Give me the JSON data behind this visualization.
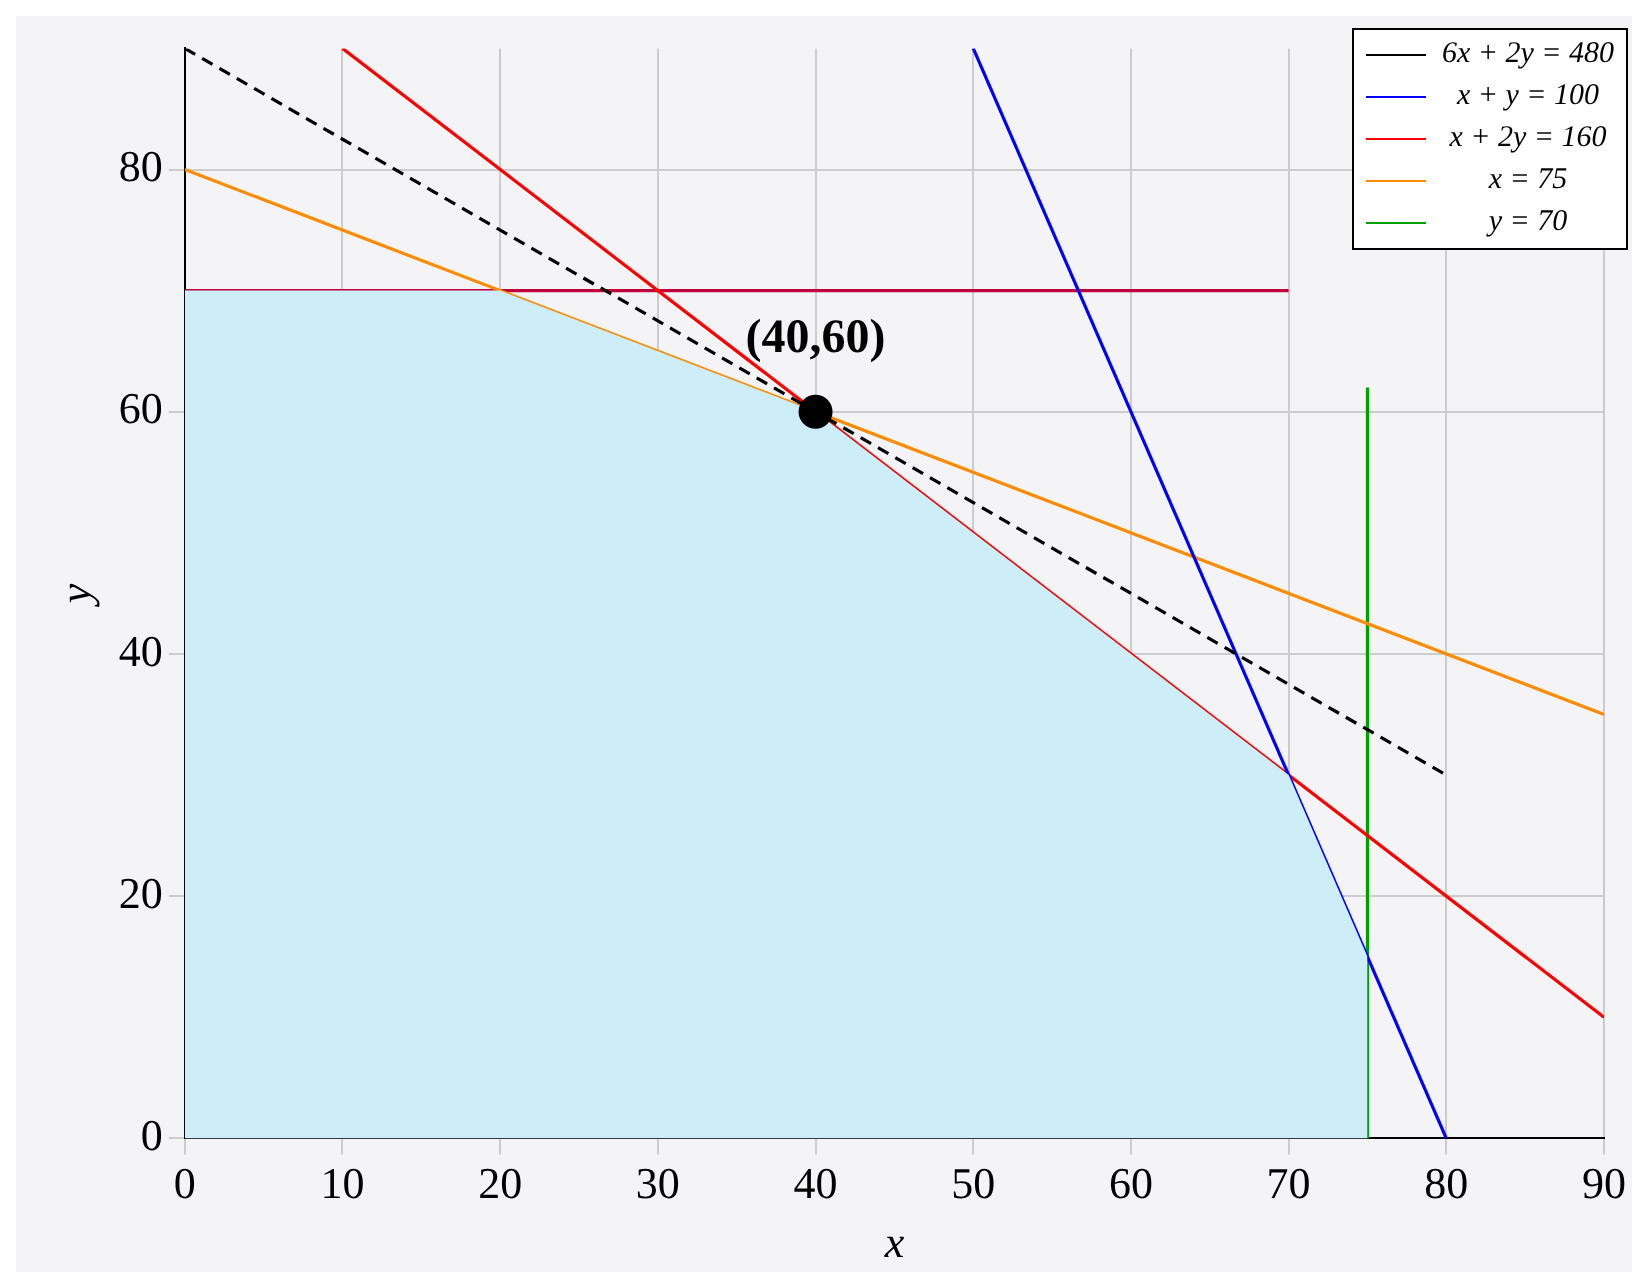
{
  "chart_data": {
    "type": "line",
    "xlabel": "x",
    "ylabel": "y",
    "xlim": [
      0,
      90
    ],
    "xticks": [
      0,
      10,
      20,
      30,
      40,
      50,
      60,
      70,
      80,
      90
    ],
    "ylim": [
      0,
      90
    ],
    "yticks": [
      0,
      20,
      40,
      60,
      80
    ],
    "grid": true,
    "legend": "top right",
    "marker": "none",
    "series": [
      {
        "type": "area",
        "color": "#cdeef9",
        "x": [
          0,
          20,
          40,
          70,
          75,
          75
        ],
        "values": [
          70,
          70,
          60,
          30,
          15,
          0
        ]
      },
      {
        "name": "6x + 2y = 480",
        "color": "#000000",
        "line_style": "dashed",
        "x": [
          0,
          80
        ],
        "values": [
          90,
          30
        ]
      },
      {
        "name": "x + y = 100",
        "color": "#0000ff",
        "x": [
          50,
          80
        ],
        "values": [
          90,
          0
        ]
      },
      {
        "name": "x + 2y = 160",
        "color": "#ff0000",
        "x": [
          10,
          90
        ],
        "values": [
          90,
          10
        ]
      },
      {
        "name": "x = 75",
        "color": "#ff8c00",
        "x": [
          0,
          90
        ],
        "values": [
          80,
          35
        ]
      },
      {
        "name": "y = 70",
        "color": "#00a000",
        "x": [
          75,
          75
        ],
        "values": [
          0,
          62
        ]
      },
      {
        "color": "#c0003c",
        "x": [
          0,
          70
        ],
        "values": [
          70,
          70
        ]
      },
      {
        "type": "scatter",
        "color": "#000000",
        "marker": "circle",
        "x": [
          40
        ],
        "values": [
          60
        ]
      }
    ],
    "annotations": [
      {
        "text": "(40,60)",
        "x": 40,
        "y": 60
      }
    ]
  }
}
